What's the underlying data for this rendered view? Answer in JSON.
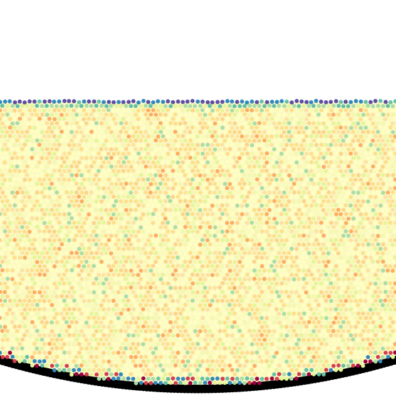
{
  "figure": {
    "background_color": "#ffffff",
    "shadow_color": "#000000",
    "palette": [
      "#5e4fa2",
      "#3288bd",
      "#66c2a5",
      "#abdda4",
      "#e6f598",
      "#ffffbf",
      "#fee08b",
      "#fdae61",
      "#f46d43",
      "#d53e4f",
      "#9e0142"
    ],
    "base_fill_color": "#fbf8c8"
  }
}
